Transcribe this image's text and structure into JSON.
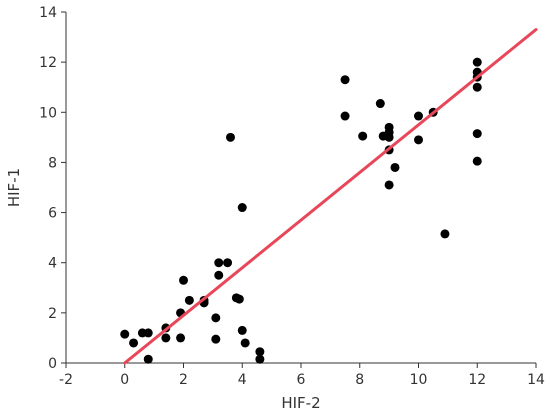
{
  "chart_data": {
    "type": "scatter",
    "title": "",
    "xlabel": "HIF-2",
    "ylabel": "HIF-1",
    "xlim": [
      -2,
      14
    ],
    "ylim": [
      0,
      14
    ],
    "xticks": [
      "-2",
      "0",
      "2",
      "4",
      "6",
      "8",
      "10",
      "12",
      "14"
    ],
    "yticks": [
      "0",
      "2",
      "4",
      "6",
      "8",
      "10",
      "12",
      "14"
    ],
    "grid": false,
    "legend": "none",
    "points": [
      {
        "x": 0.0,
        "y": 1.15
      },
      {
        "x": 0.3,
        "y": 0.8
      },
      {
        "x": 0.6,
        "y": 1.2
      },
      {
        "x": 0.8,
        "y": 1.2
      },
      {
        "x": 0.8,
        "y": 0.15
      },
      {
        "x": 1.4,
        "y": 1.4
      },
      {
        "x": 1.4,
        "y": 1.0
      },
      {
        "x": 1.9,
        "y": 2.0
      },
      {
        "x": 1.9,
        "y": 1.0
      },
      {
        "x": 2.0,
        "y": 3.3
      },
      {
        "x": 2.2,
        "y": 2.5
      },
      {
        "x": 2.7,
        "y": 2.5
      },
      {
        "x": 2.7,
        "y": 2.4
      },
      {
        "x": 3.1,
        "y": 1.8
      },
      {
        "x": 3.1,
        "y": 0.95
      },
      {
        "x": 3.2,
        "y": 4.0
      },
      {
        "x": 3.2,
        "y": 3.5
      },
      {
        "x": 3.5,
        "y": 4.0
      },
      {
        "x": 3.6,
        "y": 9.0
      },
      {
        "x": 3.8,
        "y": 2.6
      },
      {
        "x": 3.9,
        "y": 2.55
      },
      {
        "x": 4.0,
        "y": 6.2
      },
      {
        "x": 4.0,
        "y": 1.3
      },
      {
        "x": 4.1,
        "y": 0.8
      },
      {
        "x": 4.6,
        "y": 0.45
      },
      {
        "x": 4.6,
        "y": 0.15
      },
      {
        "x": 7.5,
        "y": 11.3
      },
      {
        "x": 7.5,
        "y": 9.85
      },
      {
        "x": 8.1,
        "y": 9.05
      },
      {
        "x": 8.7,
        "y": 10.35
      },
      {
        "x": 8.8,
        "y": 9.05
      },
      {
        "x": 9.0,
        "y": 9.4
      },
      {
        "x": 9.0,
        "y": 9.2
      },
      {
        "x": 9.0,
        "y": 9.0
      },
      {
        "x": 9.0,
        "y": 8.5
      },
      {
        "x": 9.0,
        "y": 7.1
      },
      {
        "x": 9.2,
        "y": 7.8
      },
      {
        "x": 10.0,
        "y": 9.85
      },
      {
        "x": 10.0,
        "y": 8.9
      },
      {
        "x": 10.5,
        "y": 10.0
      },
      {
        "x": 10.9,
        "y": 5.15
      },
      {
        "x": 12.0,
        "y": 12.0
      },
      {
        "x": 12.0,
        "y": 11.6
      },
      {
        "x": 12.0,
        "y": 11.4
      },
      {
        "x": 12.0,
        "y": 11.0
      },
      {
        "x": 12.0,
        "y": 9.15
      },
      {
        "x": 12.0,
        "y": 8.05
      }
    ],
    "fit_line": {
      "x": [
        0,
        14
      ],
      "y": [
        0.0,
        13.3
      ]
    },
    "colors": {
      "points": "#000000",
      "fit_line": "#e8475a",
      "axis": "#333333"
    }
  }
}
